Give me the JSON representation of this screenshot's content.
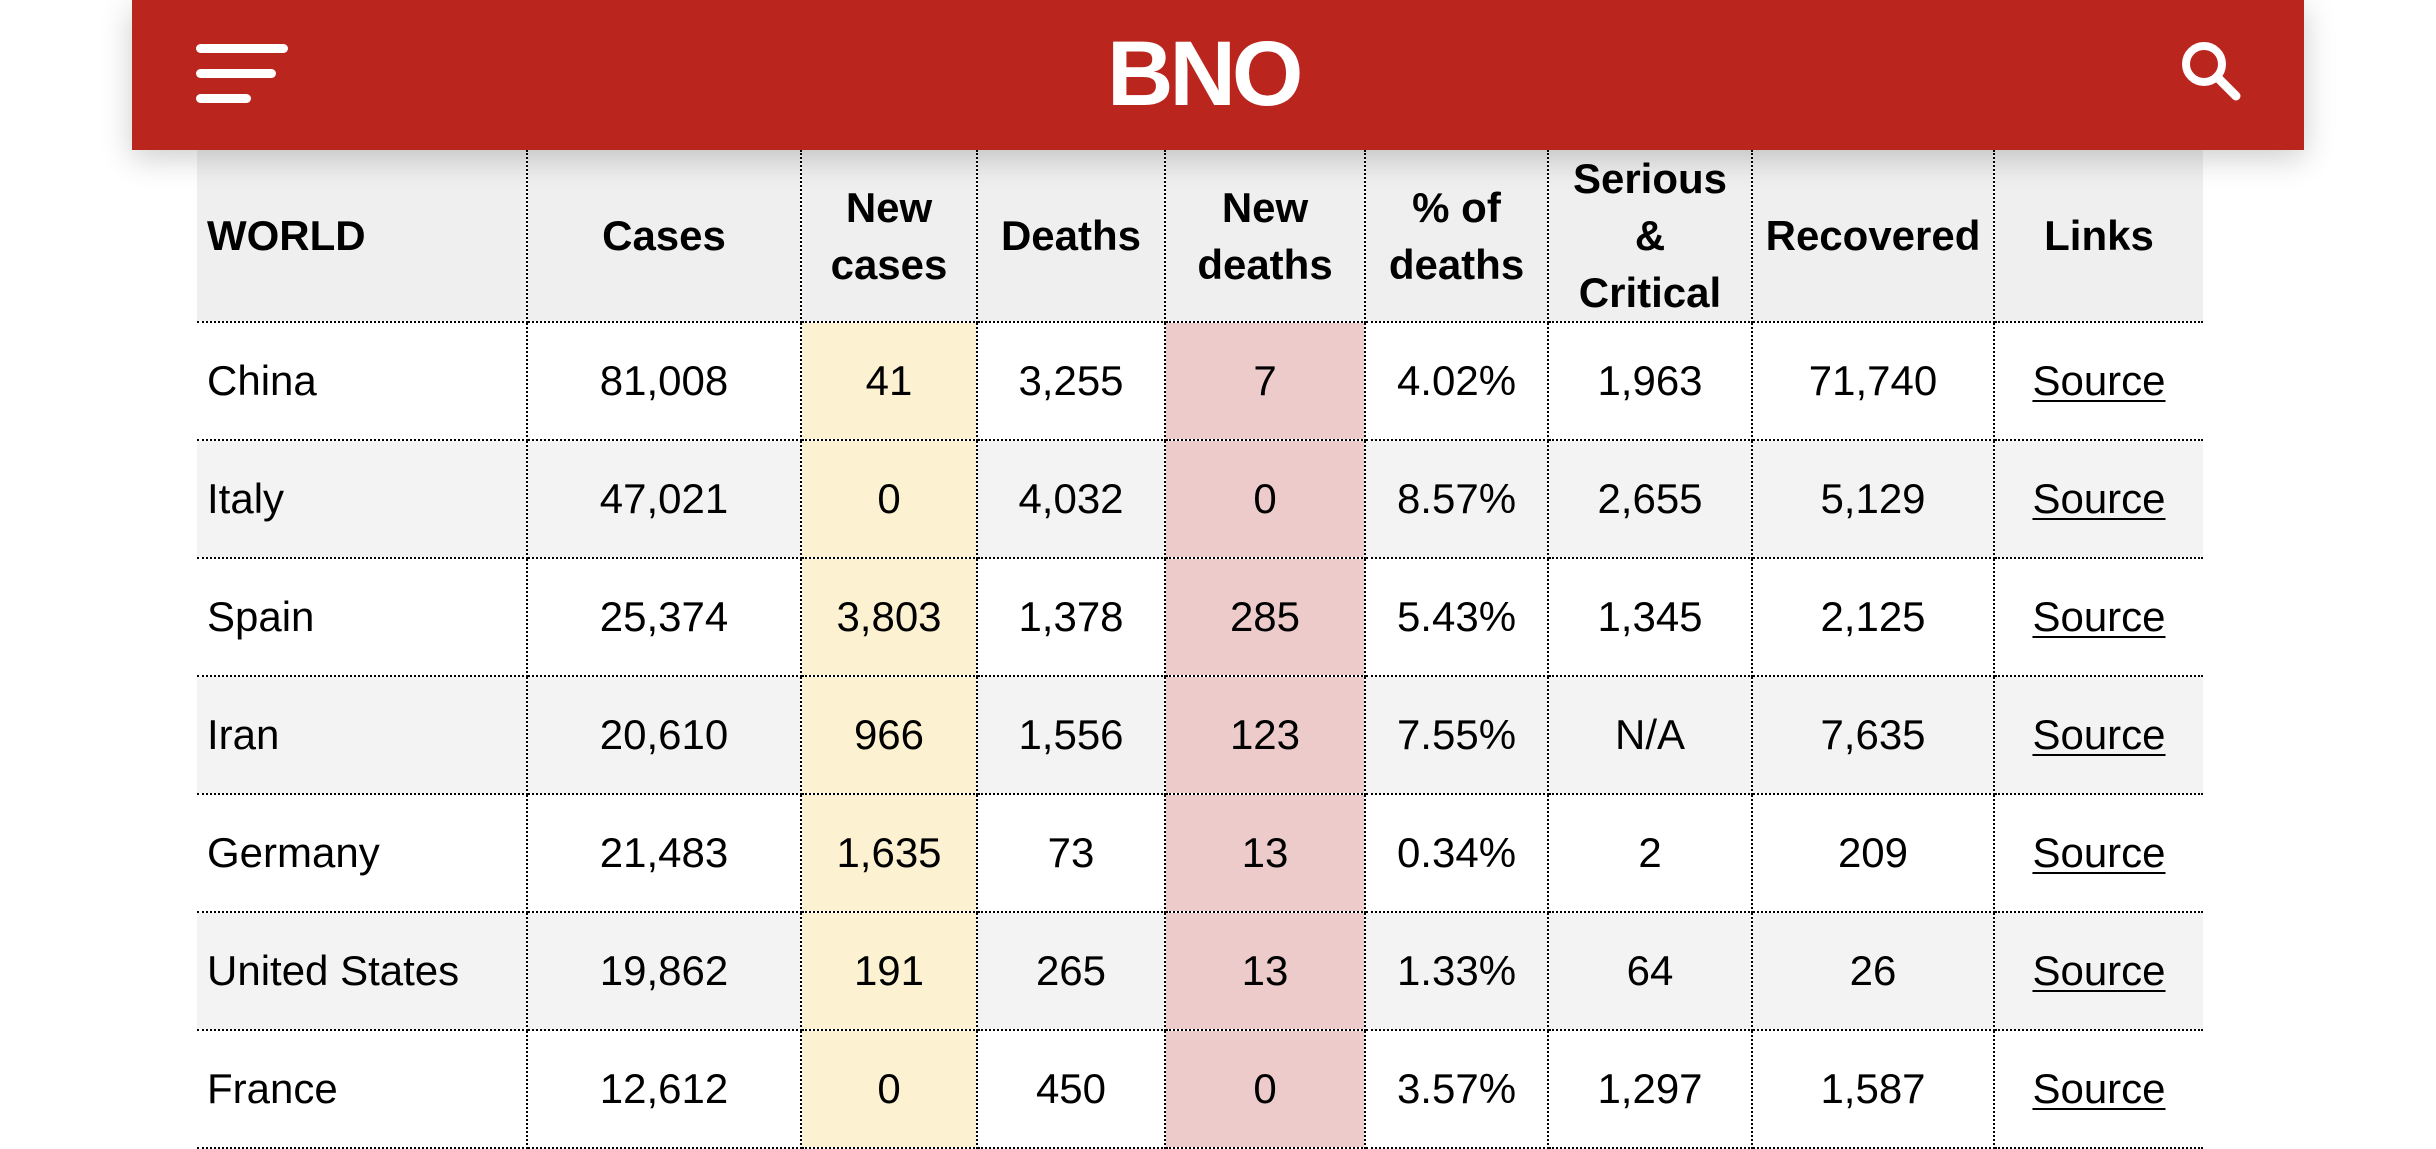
{
  "header": {
    "logo_text": "BNO",
    "brand_color": "#ba261d",
    "menu_icon": "hamburger-menu-icon",
    "search_icon": "search-icon"
  },
  "table": {
    "columns": [
      "WORLD",
      "Cases",
      "New cases",
      "Deaths",
      "New deaths",
      "% of deaths",
      "Serious & Critical",
      "Recovered",
      "Links"
    ],
    "rows": [
      {
        "country": "China",
        "cases": "81,008",
        "new_cases": "41",
        "deaths": "3,255",
        "new_deaths": "7",
        "pct_deaths": "4.02%",
        "serious": "1,963",
        "recovered": "71,740",
        "link": "Source"
      },
      {
        "country": "Italy",
        "cases": "47,021",
        "new_cases": "0",
        "deaths": "4,032",
        "new_deaths": "0",
        "pct_deaths": "8.57%",
        "serious": "2,655",
        "recovered": "5,129",
        "link": "Source"
      },
      {
        "country": "Spain",
        "cases": "25,374",
        "new_cases": "3,803",
        "deaths": "1,378",
        "new_deaths": "285",
        "pct_deaths": "5.43%",
        "serious": "1,345",
        "recovered": "2,125",
        "link": "Source"
      },
      {
        "country": "Iran",
        "cases": "20,610",
        "new_cases": "966",
        "deaths": "1,556",
        "new_deaths": "123",
        "pct_deaths": "7.55%",
        "serious": "N/A",
        "recovered": "7,635",
        "link": "Source"
      },
      {
        "country": "Germany",
        "cases": "21,483",
        "new_cases": "1,635",
        "deaths": "73",
        "new_deaths": "13",
        "pct_deaths": "0.34%",
        "serious": "2",
        "recovered": "209",
        "link": "Source"
      },
      {
        "country": "United States",
        "cases": "19,862",
        "new_cases": "191",
        "deaths": "265",
        "new_deaths": "13",
        "pct_deaths": "1.33%",
        "serious": "64",
        "recovered": "26",
        "link": "Source"
      },
      {
        "country": "France",
        "cases": "12,612",
        "new_cases": "0",
        "deaths": "450",
        "new_deaths": "0",
        "pct_deaths": "3.57%",
        "serious": "1,297",
        "recovered": "1,587",
        "link": "Source"
      }
    ]
  }
}
